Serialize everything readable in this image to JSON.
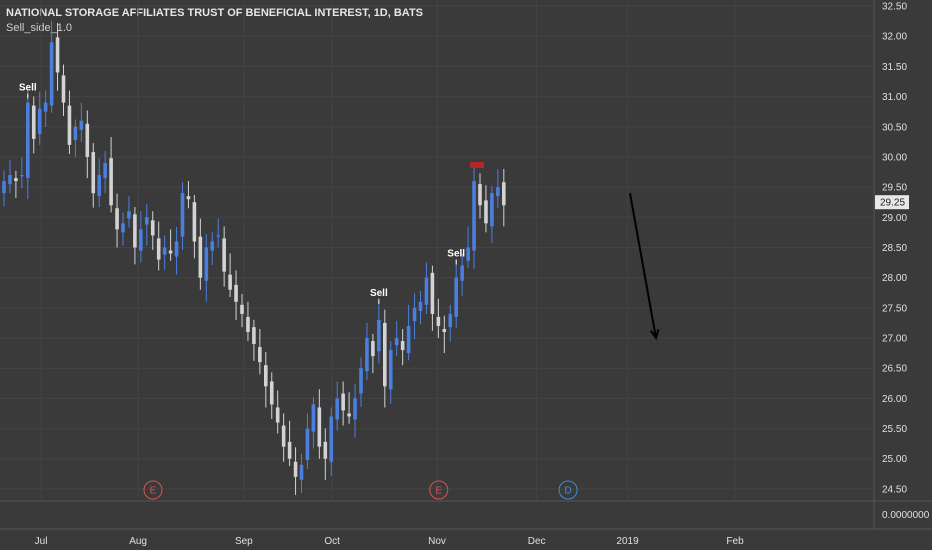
{
  "header": {
    "title": "NATIONAL STORAGE AFFILIATES TRUST OF BENEFICIAL INTEREST, 1D, BATS",
    "study": "Sell_side_1.0"
  },
  "colors": {
    "background": "#3a3a3a",
    "up": "#4a7fe0",
    "down": "#d3d3d3",
    "grid": "#444444",
    "axis_text": "#e0e0e0",
    "earnings": "#d9534f",
    "dividend": "#3a8fd9",
    "signal_red": "#cc2222"
  },
  "chart_data": {
    "type": "candlestick",
    "y_axis": {
      "min": 24.3,
      "max": 32.6,
      "ticks": [
        "32.50",
        "32.00",
        "31.50",
        "31.00",
        "30.50",
        "30.00",
        "29.50",
        "29.00",
        "28.50",
        "28.00",
        "27.50",
        "27.00",
        "26.50",
        "26.00",
        "25.50",
        "25.00",
        "24.50"
      ]
    },
    "last_price": "29.25",
    "x_ticks": [
      "Jul",
      "Aug",
      "Sep",
      "Oct",
      "Nov",
      "Dec",
      "2019",
      "Feb"
    ],
    "indicator_pane": {
      "value_label": "0.0000000"
    },
    "closes": [
      29.6,
      29.7,
      29.6,
      29.7,
      30.9,
      30.3,
      30.8,
      30.9,
      31.9,
      31.4,
      30.9,
      30.2,
      30.5,
      30.6,
      30.0,
      29.4,
      29.7,
      29.9,
      29.2,
      28.8,
      28.9,
      29.1,
      28.5,
      28.8,
      29.0,
      28.7,
      28.3,
      28.5,
      28.4,
      28.6,
      29.4,
      29.3,
      28.6,
      28.0,
      28.5,
      28.6,
      28.7,
      28.1,
      27.8,
      27.6,
      27.4,
      27.1,
      26.9,
      26.6,
      26.2,
      25.9,
      25.6,
      25.2,
      25.0,
      24.7,
      24.9,
      25.5,
      25.9,
      25.2,
      25.0,
      25.7,
      26.0,
      25.8,
      25.7,
      26.0,
      26.5,
      27.0,
      26.7,
      27.3,
      26.2,
      26.8,
      27.0,
      26.8,
      27.2,
      27.5,
      27.6,
      28.0,
      27.4,
      27.2,
      27.1,
      27.4,
      28.0,
      28.2,
      28.5,
      29.6,
      29.2,
      28.9,
      29.4,
      29.5,
      29.2
    ]
  },
  "signals": [
    {
      "label": "Sell",
      "price": 31.1,
      "index": 4,
      "extra": ""
    },
    {
      "label": "Sell",
      "price": 27.7,
      "index": 63,
      "extra": ""
    },
    {
      "label": "Sell",
      "price": 28.35,
      "index": 76,
      "extra": ""
    }
  ],
  "top_signal": {
    "index": 79,
    "price": 29.85
  },
  "events": [
    {
      "letter": "E",
      "kind": "earnings",
      "pos": 0.175
    },
    {
      "letter": "E",
      "kind": "earnings",
      "pos": 0.502
    },
    {
      "letter": "D",
      "kind": "dividend",
      "pos": 0.65
    }
  ],
  "projection": {
    "from_price": 29.4,
    "to_price": 27.0
  }
}
